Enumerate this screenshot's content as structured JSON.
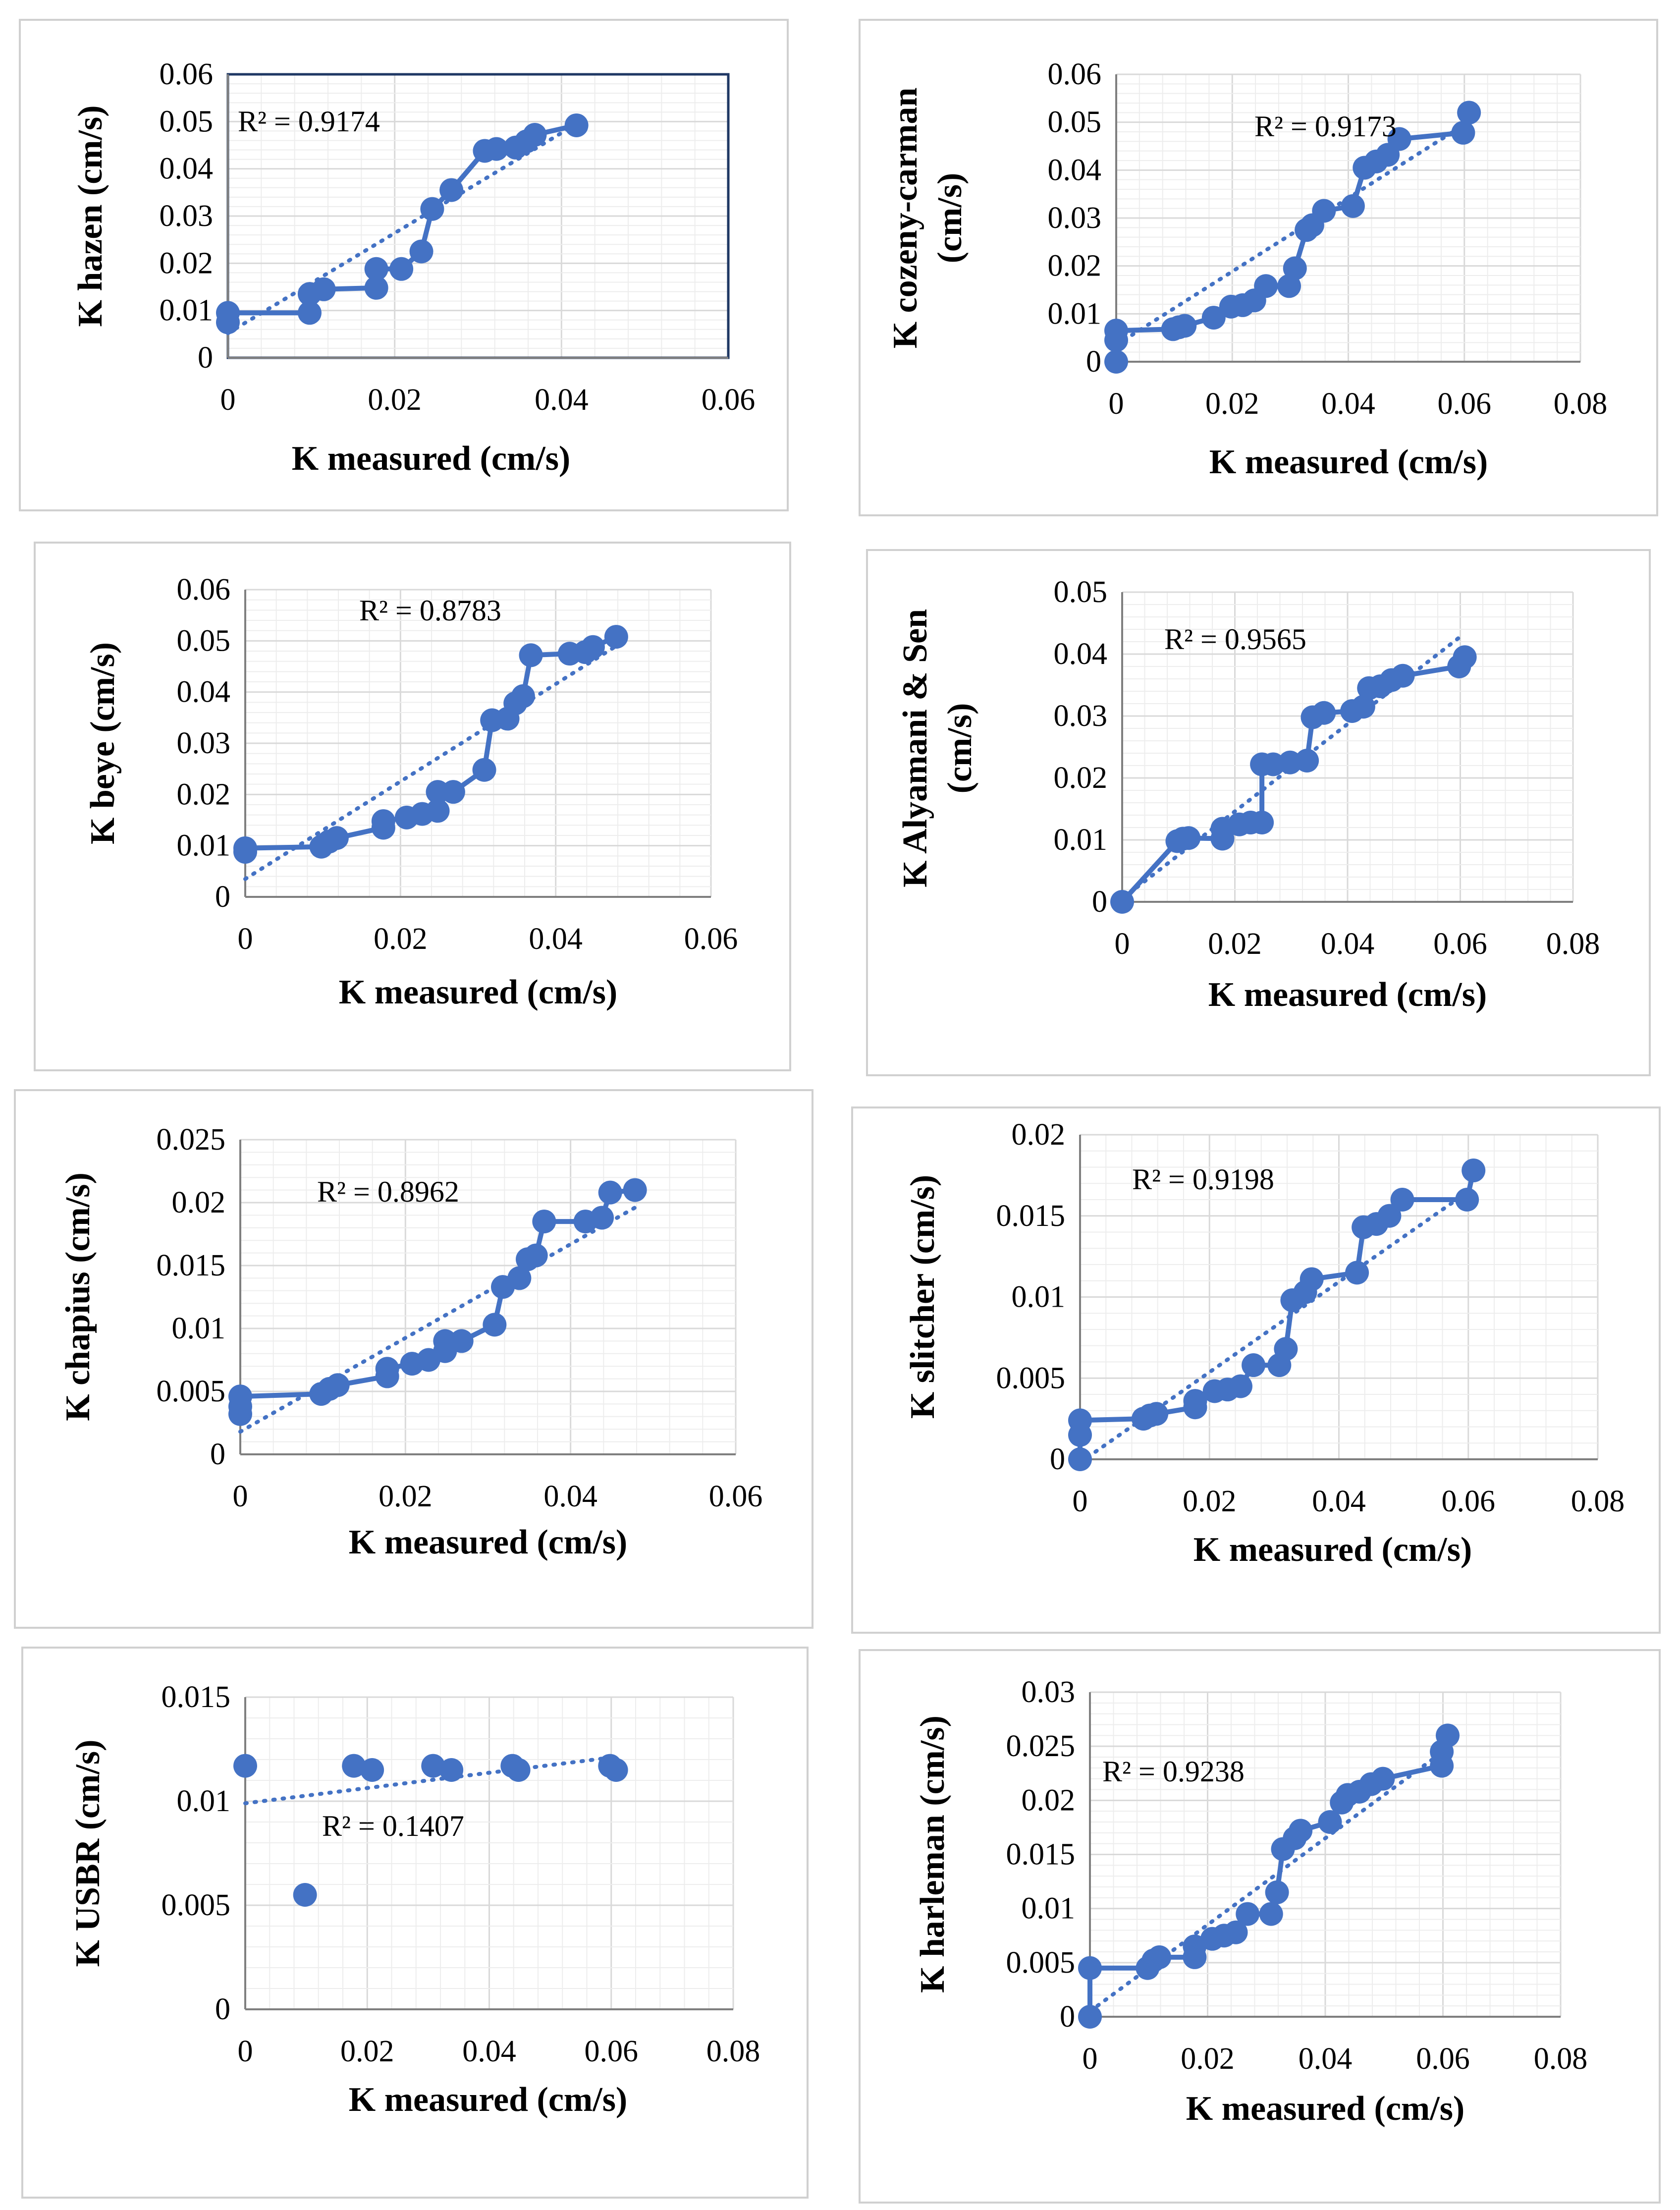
{
  "colors": {
    "series": "#4472C4",
    "grid": "#d9d9d9",
    "axis": "#7f7f7f",
    "frame": "#d0d0d0"
  },
  "chart_data": [
    {
      "type": "scatter",
      "name": "hazen",
      "ylabel": "K hazen (cm/s)",
      "xlabel": "K measured (cm/s)",
      "xlim": [
        0,
        0.06
      ],
      "ylim": [
        0,
        0.06
      ],
      "xticks": [
        "0",
        "0.02",
        "0.04",
        "0.06"
      ],
      "yticks": [
        "0",
        "0.01",
        "0.02",
        "0.03",
        "0.04",
        "0.05",
        "0.06"
      ],
      "r2": "R² = 0.9174",
      "border": "#1f3864",
      "points": [
        [
          0,
          0.0075
        ],
        [
          0,
          0.0095
        ],
        [
          0.0098,
          0.0095
        ],
        [
          0.0098,
          0.0135
        ],
        [
          0.0115,
          0.0145
        ],
        [
          0.0178,
          0.0148
        ],
        [
          0.0178,
          0.0188
        ],
        [
          0.0208,
          0.0188
        ],
        [
          0.0232,
          0.0225
        ],
        [
          0.0245,
          0.0315
        ],
        [
          0.0268,
          0.0355
        ],
        [
          0.0308,
          0.0438
        ],
        [
          0.0322,
          0.0442
        ],
        [
          0.0345,
          0.0445
        ],
        [
          0.0358,
          0.0458
        ],
        [
          0.0368,
          0.0472
        ],
        [
          0.0418,
          0.0492
        ]
      ],
      "trend": [
        [
          0,
          0.0052
        ],
        [
          0.0418,
          0.0495
        ]
      ]
    },
    {
      "type": "scatter",
      "name": "cozeny-carman",
      "ylabel": "K cozeny-carman (cm/s)",
      "xlabel": "K measured (cm/s)",
      "xlim": [
        0,
        0.08
      ],
      "ylim": [
        0,
        0.06
      ],
      "xticks": [
        "0",
        "0.02",
        "0.04",
        "0.06",
        "0.08"
      ],
      "yticks": [
        "0",
        "0.01",
        "0.02",
        "0.03",
        "0.04",
        "0.05",
        "0.06"
      ],
      "r2": "R² = 0.9173",
      "points": [
        [
          0,
          0
        ],
        [
          0,
          0.0045
        ],
        [
          0,
          0.0065
        ],
        [
          0.0098,
          0.0068
        ],
        [
          0.0108,
          0.0072
        ],
        [
          0.0118,
          0.0075
        ],
        [
          0.0168,
          0.0092
        ],
        [
          0.0198,
          0.0115
        ],
        [
          0.0218,
          0.0118
        ],
        [
          0.0238,
          0.0128
        ],
        [
          0.0258,
          0.0158
        ],
        [
          0.0298,
          0.0158
        ],
        [
          0.0308,
          0.0195
        ],
        [
          0.0328,
          0.0275
        ],
        [
          0.0338,
          0.0285
        ],
        [
          0.0358,
          0.0315
        ],
        [
          0.0408,
          0.0325
        ],
        [
          0.0428,
          0.0405
        ],
        [
          0.0448,
          0.0418
        ],
        [
          0.0468,
          0.0432
        ],
        [
          0.0488,
          0.0465
        ],
        [
          0.0598,
          0.0478
        ],
        [
          0.0608,
          0.052
        ]
      ],
      "trend": [
        [
          0,
          0.0035
        ],
        [
          0.06,
          0.0495
        ]
      ]
    },
    {
      "type": "scatter",
      "name": "beye",
      "ylabel": "K beye (cm/s)",
      "xlabel": "K measured (cm/s)",
      "xlim": [
        0,
        0.06
      ],
      "ylim": [
        0,
        0.06
      ],
      "xticks": [
        "0",
        "0.02",
        "0.04",
        "0.06"
      ],
      "yticks": [
        "0",
        "0.01",
        "0.02",
        "0.03",
        "0.04",
        "0.05",
        "0.06"
      ],
      "r2": "R² = 0.8783",
      "points": [
        [
          0,
          0.0088
        ],
        [
          0,
          0.0095
        ],
        [
          0.0098,
          0.0098
        ],
        [
          0.0108,
          0.0108
        ],
        [
          0.0118,
          0.0115
        ],
        [
          0.0178,
          0.0135
        ],
        [
          0.0178,
          0.0148
        ],
        [
          0.0208,
          0.0155
        ],
        [
          0.0228,
          0.0162
        ],
        [
          0.0248,
          0.0168
        ],
        [
          0.0248,
          0.0205
        ],
        [
          0.0268,
          0.0205
        ],
        [
          0.0308,
          0.0248
        ],
        [
          0.0318,
          0.0345
        ],
        [
          0.0338,
          0.0348
        ],
        [
          0.0348,
          0.0378
        ],
        [
          0.0358,
          0.0392
        ],
        [
          0.0368,
          0.0472
        ],
        [
          0.0418,
          0.0475
        ],
        [
          0.0438,
          0.0478
        ],
        [
          0.0448,
          0.0488
        ],
        [
          0.0478,
          0.0508
        ]
      ],
      "trend": [
        [
          0,
          0.0035
        ],
        [
          0.0478,
          0.049
        ]
      ]
    },
    {
      "type": "scatter",
      "name": "Alyamani & Sen",
      "ylabel": "K Alyamani & Sen (cm/s)",
      "xlabel": "K measured (cm/s)",
      "xlim": [
        0,
        0.08
      ],
      "ylim": [
        0,
        0.05
      ],
      "xticks": [
        "0",
        "0.02",
        "0.04",
        "0.06",
        "0.08"
      ],
      "yticks": [
        "0",
        "0.01",
        "0.02",
        "0.03",
        "0.04",
        "0.05"
      ],
      "r2": "R² = 0.9565",
      "points": [
        [
          0,
          0
        ],
        [
          0.0098,
          0.0098
        ],
        [
          0.0108,
          0.0102
        ],
        [
          0.0118,
          0.0103
        ],
        [
          0.0178,
          0.0102
        ],
        [
          0.0178,
          0.0118
        ],
        [
          0.0208,
          0.0125
        ],
        [
          0.0228,
          0.0128
        ],
        [
          0.0248,
          0.0128
        ],
        [
          0.0248,
          0.0222
        ],
        [
          0.0268,
          0.0222
        ],
        [
          0.0298,
          0.0225
        ],
        [
          0.0328,
          0.0228
        ],
        [
          0.0338,
          0.0298
        ],
        [
          0.0358,
          0.0305
        ],
        [
          0.0408,
          0.0308
        ],
        [
          0.0428,
          0.0315
        ],
        [
          0.0438,
          0.0345
        ],
        [
          0.0458,
          0.0348
        ],
        [
          0.0478,
          0.0358
        ],
        [
          0.0498,
          0.0365
        ],
        [
          0.0598,
          0.038
        ],
        [
          0.0608,
          0.0395
        ]
      ],
      "trend": [
        [
          0,
          0.0005
        ],
        [
          0.06,
          0.0428
        ]
      ]
    },
    {
      "type": "scatter",
      "name": "chapius",
      "ylabel": "K chapius (cm/s)",
      "xlabel": "K measured (cm/s)",
      "xlim": [
        0,
        0.06
      ],
      "ylim": [
        0,
        0.025
      ],
      "xticks": [
        "0",
        "0.02",
        "0.04",
        "0.06"
      ],
      "yticks": [
        "0",
        "0.005",
        "0.01",
        "0.015",
        "0.02",
        "0.025"
      ],
      "r2": "R² = 0.8962",
      "points": [
        [
          0,
          0.0032
        ],
        [
          0,
          0.0038
        ],
        [
          0,
          0.0046
        ],
        [
          0.0098,
          0.0048
        ],
        [
          0.0108,
          0.0052
        ],
        [
          0.0118,
          0.0055
        ],
        [
          0.0178,
          0.0062
        ],
        [
          0.0178,
          0.0068
        ],
        [
          0.0208,
          0.0072
        ],
        [
          0.0228,
          0.0075
        ],
        [
          0.0248,
          0.0082
        ],
        [
          0.0248,
          0.009
        ],
        [
          0.0268,
          0.009
        ],
        [
          0.0308,
          0.0103
        ],
        [
          0.0318,
          0.0133
        ],
        [
          0.0338,
          0.014
        ],
        [
          0.0348,
          0.0155
        ],
        [
          0.0358,
          0.0158
        ],
        [
          0.0368,
          0.0185
        ],
        [
          0.0418,
          0.0185
        ],
        [
          0.0438,
          0.0188
        ],
        [
          0.0448,
          0.0208
        ],
        [
          0.0478,
          0.021
        ]
      ],
      "trend": [
        [
          0,
          0.0018
        ],
        [
          0.0478,
          0.0196
        ]
      ]
    },
    {
      "type": "scatter",
      "name": "slitcher",
      "ylabel": "K slitcher (cm/s)",
      "xlabel": "K measured (cm/s)",
      "xlim": [
        0,
        0.08
      ],
      "ylim": [
        0,
        0.02
      ],
      "xticks": [
        "0",
        "0.02",
        "0.04",
        "0.06",
        "0.08"
      ],
      "yticks": [
        "0",
        "0.005",
        "0.01",
        "0.015",
        "0.02"
      ],
      "r2": "R² = 0.9198",
      "points": [
        [
          0,
          0
        ],
        [
          0,
          0.0015
        ],
        [
          0,
          0.0024
        ],
        [
          0.0098,
          0.0025
        ],
        [
          0.0108,
          0.0027
        ],
        [
          0.0118,
          0.0028
        ],
        [
          0.0178,
          0.0032
        ],
        [
          0.0178,
          0.0036
        ],
        [
          0.0208,
          0.0042
        ],
        [
          0.0228,
          0.0043
        ],
        [
          0.0248,
          0.0045
        ],
        [
          0.0268,
          0.0058
        ],
        [
          0.0308,
          0.0058
        ],
        [
          0.0318,
          0.0068
        ],
        [
          0.0328,
          0.0098
        ],
        [
          0.0348,
          0.0103
        ],
        [
          0.0358,
          0.0111
        ],
        [
          0.0428,
          0.0115
        ],
        [
          0.0438,
          0.0143
        ],
        [
          0.0458,
          0.0145
        ],
        [
          0.0478,
          0.015
        ],
        [
          0.0498,
          0.016
        ],
        [
          0.0598,
          0.016
        ],
        [
          0.0608,
          0.0178
        ]
      ],
      "trend": [
        [
          0,
          -0.0002
        ],
        [
          0.06,
          0.0165
        ]
      ]
    },
    {
      "type": "scatter",
      "name": "USBR",
      "ylabel": "K USBR (cm/s)",
      "xlabel": "K measured (cm/s)",
      "xlim": [
        0,
        0.08
      ],
      "ylim": [
        0,
        0.015
      ],
      "xticks": [
        "0",
        "0.02",
        "0.04",
        "0.06",
        "0.08"
      ],
      "yticks": [
        "0",
        "0.005",
        "0.01",
        "0.015"
      ],
      "r2": "R² = 0.1407",
      "no_line": true,
      "points": [
        [
          0,
          0.0117
        ],
        [
          0.0098,
          0.0055
        ],
        [
          0.0178,
          0.0117
        ],
        [
          0.0208,
          0.0115
        ],
        [
          0.0308,
          0.0117
        ],
        [
          0.0338,
          0.0115
        ],
        [
          0.0438,
          0.0117
        ],
        [
          0.0448,
          0.0115
        ],
        [
          0.0598,
          0.0117
        ],
        [
          0.0608,
          0.0115
        ]
      ],
      "trend": [
        [
          0,
          0.0099
        ],
        [
          0.06,
          0.0121
        ]
      ]
    },
    {
      "type": "scatter",
      "name": "harleman",
      "ylabel": "K harleman (cm/s)",
      "xlabel": "K measured (cm/s)",
      "xlim": [
        0,
        0.08
      ],
      "ylim": [
        0,
        0.03
      ],
      "xticks": [
        "0",
        "0.02",
        "0.04",
        "0.06",
        "0.08"
      ],
      "yticks": [
        "0",
        "0.005",
        "0.01",
        "0.015",
        "0.02",
        "0.025",
        "0.03"
      ],
      "r2": "R² = 0.9238",
      "points": [
        [
          0,
          0
        ],
        [
          0,
          0.0045
        ],
        [
          0.0098,
          0.0045
        ],
        [
          0.0108,
          0.0052
        ],
        [
          0.0118,
          0.0055
        ],
        [
          0.0178,
          0.0055
        ],
        [
          0.0178,
          0.0065
        ],
        [
          0.0208,
          0.0072
        ],
        [
          0.0228,
          0.0075
        ],
        [
          0.0248,
          0.0078
        ],
        [
          0.0268,
          0.0095
        ],
        [
          0.0308,
          0.0095
        ],
        [
          0.0318,
          0.0115
        ],
        [
          0.0328,
          0.0155
        ],
        [
          0.0348,
          0.0165
        ],
        [
          0.0358,
          0.0172
        ],
        [
          0.0408,
          0.018
        ],
        [
          0.0428,
          0.0198
        ],
        [
          0.0438,
          0.0205
        ],
        [
          0.0458,
          0.0208
        ],
        [
          0.0478,
          0.0215
        ],
        [
          0.0498,
          0.022
        ],
        [
          0.0598,
          0.0232
        ],
        [
          0.0598,
          0.0245
        ],
        [
          0.0608,
          0.026
        ]
      ],
      "trend": [
        [
          0,
          0.0005
        ],
        [
          0.06,
          0.0245
        ]
      ]
    }
  ]
}
